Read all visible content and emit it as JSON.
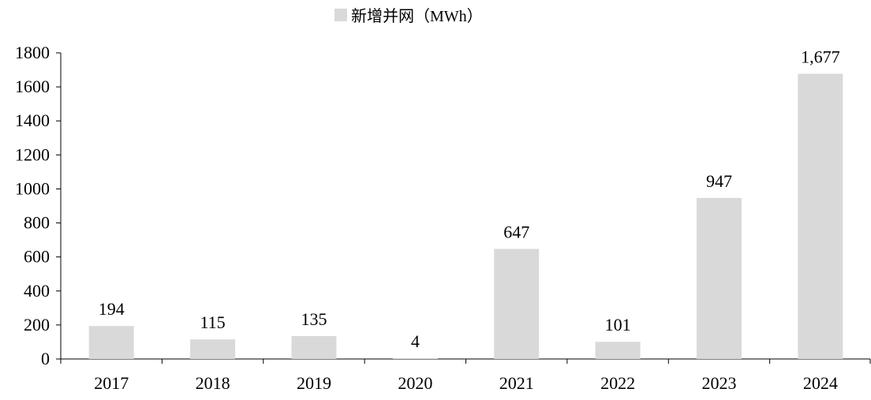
{
  "chart_data": {
    "type": "bar",
    "categories": [
      "2017",
      "2018",
      "2019",
      "2020",
      "2021",
      "2022",
      "2023",
      "2024"
    ],
    "series": [
      {
        "name": "新增并网（MWh）",
        "values": [
          194,
          115,
          135,
          4,
          647,
          101,
          947,
          1677
        ],
        "data_labels": [
          "194",
          "115",
          "135",
          "4",
          "647",
          "101",
          "947",
          "1,677"
        ],
        "color": "#d9d9d9"
      }
    ],
    "y_ticks": [
      "0",
      "200",
      "400",
      "600",
      "800",
      "1000",
      "1200",
      "1400",
      "1600",
      "1800"
    ],
    "ylim": [
      0,
      1800
    ],
    "grid": false,
    "legend_position": "top-center"
  }
}
